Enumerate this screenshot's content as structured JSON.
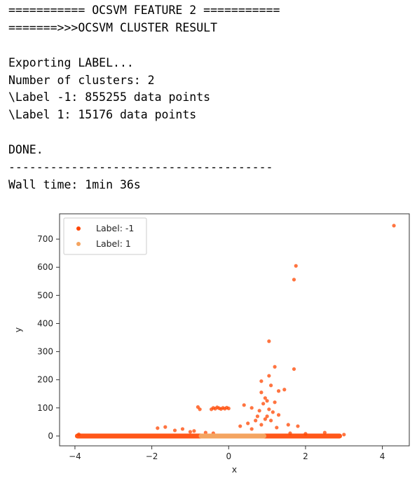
{
  "console": {
    "lines": [
      "=========== OCSVM FEATURE 2 ===========",
      "=======>>>OCSVM CLUSTER RESULT",
      "",
      "Exporting LABEL...",
      "Number of clusters: 2",
      "\\Label -1: 855255 data points",
      "\\Label 1: 15176 data points",
      "",
      "DONE.",
      "--------------------------------------",
      "Wall time: 1min 36s"
    ]
  },
  "chart_data": {
    "type": "scatter",
    "xlabel": "x",
    "ylabel": "y",
    "xlim": [
      -4.4,
      4.7
    ],
    "ylim": [
      -35,
      790
    ],
    "xticks": [
      -4,
      -2,
      0,
      2,
      4
    ],
    "yticks": [
      0,
      100,
      200,
      300,
      400,
      500,
      600,
      700
    ],
    "legend_position": "top-left",
    "series": [
      {
        "name": "Label: -1",
        "color": "#ff4500",
        "dense_band": {
          "x_from": -4.0,
          "x_to": 2.95,
          "y": 0
        },
        "points": [
          [
            4.3,
            748
          ],
          [
            1.75,
            605
          ],
          [
            1.7,
            556
          ],
          [
            1.05,
            337
          ],
          [
            1.2,
            246
          ],
          [
            1.7,
            238
          ],
          [
            1.05,
            214
          ],
          [
            0.85,
            195
          ],
          [
            1.1,
            180
          ],
          [
            1.3,
            160
          ],
          [
            0.85,
            155
          ],
          [
            1.45,
            165
          ],
          [
            0.95,
            135
          ],
          [
            1.0,
            125
          ],
          [
            1.2,
            120
          ],
          [
            0.9,
            115
          ],
          [
            1.05,
            95
          ],
          [
            0.8,
            90
          ],
          [
            1.15,
            85
          ],
          [
            0.75,
            70
          ],
          [
            1.0,
            70
          ],
          [
            1.3,
            75
          ],
          [
            0.4,
            110
          ],
          [
            0.6,
            100
          ],
          [
            0.95,
            60
          ],
          [
            0.7,
            55
          ],
          [
            1.1,
            55
          ],
          [
            0.5,
            45
          ],
          [
            0.85,
            40
          ],
          [
            1.55,
            40
          ],
          [
            0.3,
            35
          ],
          [
            0.6,
            25
          ],
          [
            1.25,
            30
          ],
          [
            1.8,
            35
          ],
          [
            -0.8,
            103
          ],
          [
            -0.75,
            95
          ],
          [
            -0.45,
            95
          ],
          [
            -0.4,
            100
          ],
          [
            -0.35,
            97
          ],
          [
            -0.3,
            102
          ],
          [
            -0.25,
            99
          ],
          [
            -0.2,
            96
          ],
          [
            -0.15,
            100
          ],
          [
            -0.1,
            97
          ],
          [
            -0.05,
            101
          ],
          [
            0.0,
            98
          ],
          [
            -1.85,
            28
          ],
          [
            -1.65,
            32
          ],
          [
            -1.4,
            20
          ],
          [
            -1.2,
            25
          ],
          [
            -1.0,
            15
          ],
          [
            -0.9,
            18
          ],
          [
            -0.6,
            12
          ],
          [
            -0.4,
            10
          ],
          [
            1.6,
            10
          ],
          [
            2.0,
            8
          ],
          [
            2.5,
            12
          ],
          [
            3.0,
            5
          ],
          [
            -3.9,
            6
          ]
        ]
      },
      {
        "name": "Label: 1",
        "color": "#f4a460",
        "dense_band": {
          "x_from": -0.78,
          "x_to": 0.98,
          "y": 0
        },
        "points": []
      }
    ]
  }
}
